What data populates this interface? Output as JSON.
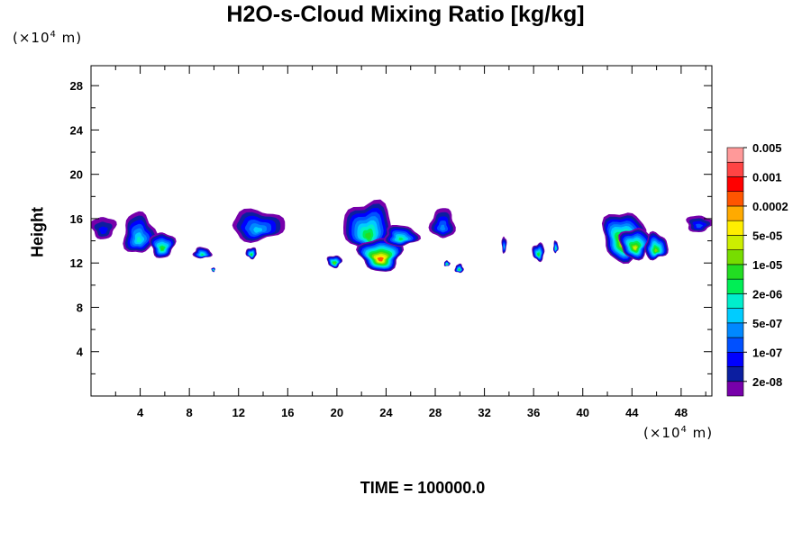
{
  "chart_data": {
    "type": "heatmap",
    "title": "H2O-s-Cloud Mixing Ratio [kg/kg]",
    "ylabel": "Height",
    "x_unit": {
      "prefix": "(×10",
      "exp": "4",
      "suffix": " m)"
    },
    "y_unit": {
      "prefix": "(×10",
      "exp": "4",
      "suffix": " m)"
    },
    "xlim": [
      0,
      50.5
    ],
    "ylim": [
      0,
      29.8
    ],
    "x_ticks": [
      4,
      8,
      12,
      16,
      20,
      24,
      28,
      32,
      36,
      40,
      44,
      48
    ],
    "y_ticks": [
      4,
      8,
      12,
      16,
      20,
      24,
      28
    ],
    "footer": "TIME = 100000.0",
    "colorbar": {
      "colors": [
        "#7700aa",
        "#0b1ea0",
        "#0000ff",
        "#0050ff",
        "#0088ff",
        "#00ccff",
        "#00eecc",
        "#00ee55",
        "#22dd22",
        "#77dd00",
        "#ccee00",
        "#ffee00",
        "#ffaa00",
        "#ff5500",
        "#ff0000",
        "#ff4444",
        "#ff9999"
      ],
      "labels": [
        "2e-08",
        "1e-07",
        "5e-07",
        "2e-06",
        "1e-05",
        "5e-05",
        "0.0002",
        "0.001",
        "0.005"
      ]
    },
    "clouds": [
      {
        "x": [
          0,
          2
        ],
        "y": [
          14.2,
          16.2
        ],
        "max": 2
      },
      {
        "x": [
          2.6,
          5.2
        ],
        "y": [
          12.8,
          16.5
        ],
        "max": 6
      },
      {
        "x": [
          4.8,
          6.8
        ],
        "y": [
          12.5,
          14.8
        ],
        "max": 8
      },
      {
        "x": [
          8.3,
          9.8
        ],
        "y": [
          12.4,
          13.4
        ],
        "max": 7
      },
      {
        "x": [
          9.8,
          10.1
        ],
        "y": [
          11.2,
          11.6
        ],
        "max": 8
      },
      {
        "x": [
          11.4,
          15.7
        ],
        "y": [
          14.0,
          16.8
        ],
        "max": 5
      },
      {
        "x": [
          12.6,
          13.5
        ],
        "y": [
          12.4,
          13.4
        ],
        "max": 8
      },
      {
        "x": [
          19.2,
          20.4
        ],
        "y": [
          11.6,
          12.7
        ],
        "max": 9
      },
      {
        "x": [
          20.6,
          24.5
        ],
        "y": [
          12.8,
          17.6
        ],
        "max": 8
      },
      {
        "x": [
          21.8,
          25.3
        ],
        "y": [
          11.3,
          14.3
        ],
        "max": 13
      },
      {
        "x": [
          23.8,
          26.6
        ],
        "y": [
          13.5,
          15.4
        ],
        "max": 7
      },
      {
        "x": [
          27.6,
          29.6
        ],
        "y": [
          14.2,
          16.9
        ],
        "max": 4
      },
      {
        "x": [
          28.7,
          29.2
        ],
        "y": [
          11.7,
          12.2
        ],
        "max": 8
      },
      {
        "x": [
          29.6,
          30.3
        ],
        "y": [
          11.1,
          11.9
        ],
        "max": 8
      },
      {
        "x": [
          33.4,
          33.8
        ],
        "y": [
          12.9,
          14.4
        ],
        "max": 5
      },
      {
        "x": [
          35.9,
          36.9
        ],
        "y": [
          12.2,
          13.8
        ],
        "max": 8
      },
      {
        "x": [
          37.6,
          38.0
        ],
        "y": [
          12.9,
          14.0
        ],
        "max": 7
      },
      {
        "x": [
          41.6,
          45.0
        ],
        "y": [
          12.2,
          16.7
        ],
        "max": 11
      },
      {
        "x": [
          43.0,
          45.5
        ],
        "y": [
          12.4,
          15.2
        ],
        "max": 10
      },
      {
        "x": [
          45.0,
          46.9
        ],
        "y": [
          12.3,
          14.7
        ],
        "max": 9
      },
      {
        "x": [
          48.4,
          50.5
        ],
        "y": [
          14.8,
          16.3
        ],
        "max": 3
      }
    ]
  }
}
